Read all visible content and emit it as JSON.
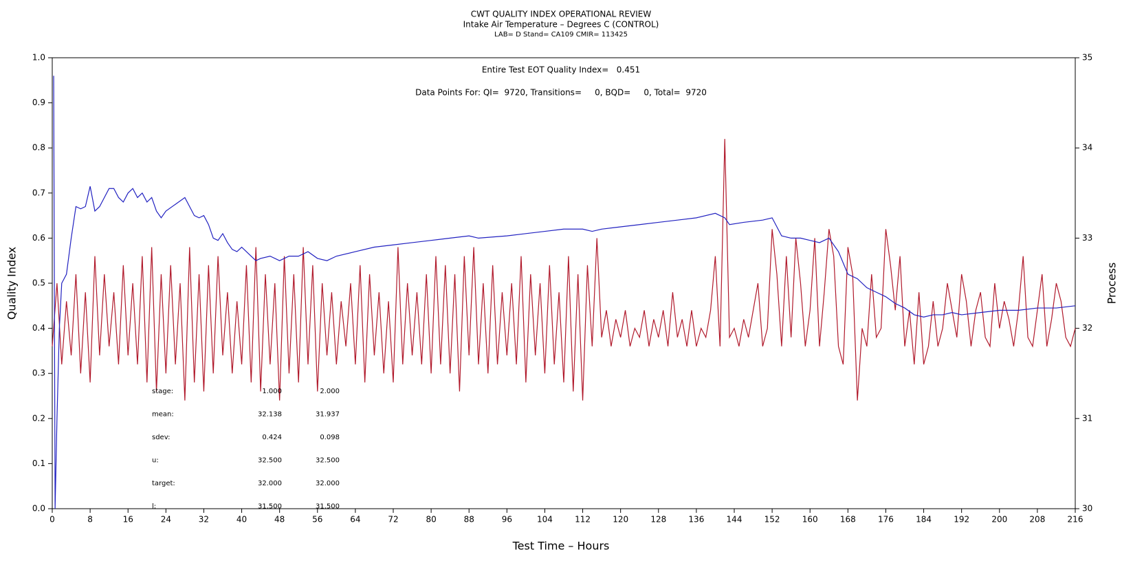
{
  "chart_data": {
    "type": "line",
    "title": "CWT QUALITY INDEX OPERATIONAL REVIEW",
    "subtitle": "Intake Air Temperature – Degrees C (CONTROL)",
    "subtitle2": "LAB= D Stand= CA109 CMIR= 113425",
    "annotations": [
      "Entire Test EOT Quality Index=   0.451",
      "Data Points For: QI=  9720, Transitions=     0, BQD=     0, Total=  9720"
    ],
    "stats_table": [
      [
        "stage:",
        "1.000",
        "2.000"
      ],
      [
        "mean:",
        "32.138",
        "31.937"
      ],
      [
        "sdev:",
        "0.424",
        "0.098"
      ],
      [
        "u:",
        "32.500",
        "32.500"
      ],
      [
        "target:",
        "32.000",
        "32.000"
      ],
      [
        "l:",
        "31.500",
        "31.500"
      ]
    ],
    "x_label": "Test Time – Hours",
    "y_label": "Quality Index",
    "y2_label": "Process",
    "xlim": [
      0,
      216
    ],
    "xticks": [
      0,
      8,
      16,
      24,
      32,
      40,
      48,
      56,
      64,
      72,
      80,
      88,
      96,
      104,
      112,
      120,
      128,
      136,
      144,
      152,
      160,
      168,
      176,
      184,
      192,
      200,
      208,
      216
    ],
    "ylim": [
      0,
      1
    ],
    "yticks": [
      {
        "value": 0,
        "label": "0.0"
      },
      {
        "value": 0.1,
        "label": "0.1"
      },
      {
        "value": 0.2,
        "label": "0.2"
      },
      {
        "value": 0.3,
        "label": "0.3"
      },
      {
        "value": 0.4,
        "label": "0.4"
      },
      {
        "value": 0.5,
        "label": "0.5"
      },
      {
        "value": 0.6,
        "label": "0.6"
      },
      {
        "value": 0.7,
        "label": "0.7"
      },
      {
        "value": 0.8,
        "label": "0.8"
      },
      {
        "value": 0.9,
        "label": "0.9"
      },
      {
        "value": 1,
        "label": "1.0"
      }
    ],
    "y2lim": [
      30,
      35
    ],
    "y2ticks": [
      30,
      31,
      32,
      33,
      34,
      35
    ],
    "series": [
      {
        "color": "#b0182a",
        "axis": "y2",
        "x": [
          0,
          1,
          2,
          3,
          4,
          5,
          6,
          7,
          8,
          9,
          10,
          11,
          12,
          13,
          14,
          15,
          16,
          17,
          18,
          19,
          20,
          21,
          22,
          23,
          24,
          25,
          26,
          27,
          28,
          29,
          30,
          31,
          32,
          33,
          34,
          35,
          36,
          37,
          38,
          39,
          40,
          41,
          42,
          43,
          44,
          45,
          46,
          47,
          48,
          49,
          50,
          51,
          52,
          53,
          54,
          55,
          56,
          57,
          58,
          59,
          60,
          61,
          62,
          63,
          64,
          65,
          66,
          67,
          68,
          69,
          70,
          71,
          72,
          73,
          74,
          75,
          76,
          77,
          78,
          79,
          80,
          81,
          82,
          83,
          84,
          85,
          86,
          87,
          88,
          89,
          90,
          91,
          92,
          93,
          94,
          95,
          96,
          97,
          98,
          99,
          100,
          101,
          102,
          103,
          104,
          105,
          106,
          107,
          108,
          109,
          110,
          111,
          112,
          113,
          114,
          115,
          116,
          117,
          118,
          119,
          120,
          121,
          122,
          123,
          124,
          125,
          126,
          127,
          128,
          129,
          130,
          131,
          132,
          133,
          134,
          135,
          136,
          137,
          138,
          139,
          140,
          141,
          142,
          143,
          144,
          145,
          146,
          147,
          148,
          149,
          150,
          151,
          152,
          153,
          154,
          155,
          156,
          157,
          158,
          159,
          160,
          161,
          162,
          163,
          164,
          165,
          166,
          167,
          168,
          169,
          170,
          171,
          172,
          173,
          174,
          175,
          176,
          177,
          178,
          179,
          180,
          181,
          182,
          183,
          184,
          185,
          186,
          187,
          188,
          189,
          190,
          191,
          192,
          193,
          194,
          195,
          196,
          197,
          198,
          199,
          200,
          201,
          202,
          203,
          204,
          205,
          206,
          207,
          208,
          209,
          210,
          211,
          212,
          213,
          214,
          215,
          216
        ],
        "values": [
          31.8,
          32.5,
          31.6,
          32.3,
          31.7,
          32.6,
          31.5,
          32.4,
          31.4,
          32.8,
          31.7,
          32.6,
          31.8,
          32.4,
          31.6,
          32.7,
          31.7,
          32.5,
          31.6,
          32.8,
          31.4,
          32.9,
          31.3,
          32.6,
          31.5,
          32.7,
          31.6,
          32.5,
          31.2,
          32.9,
          31.4,
          32.6,
          31.3,
          32.7,
          31.5,
          32.8,
          31.7,
          32.4,
          31.5,
          32.3,
          31.6,
          32.7,
          31.4,
          32.9,
          31.3,
          32.6,
          31.6,
          32.5,
          31.2,
          32.8,
          31.5,
          32.6,
          31.4,
          32.9,
          31.6,
          32.7,
          31.3,
          32.5,
          31.7,
          32.4,
          31.6,
          32.3,
          31.8,
          32.5,
          31.6,
          32.7,
          31.4,
          32.6,
          31.7,
          32.4,
          31.5,
          32.3,
          31.4,
          32.9,
          31.6,
          32.5,
          31.7,
          32.4,
          31.6,
          32.6,
          31.5,
          32.8,
          31.6,
          32.7,
          31.5,
          32.6,
          31.3,
          32.8,
          31.7,
          32.9,
          31.6,
          32.5,
          31.5,
          32.7,
          31.6,
          32.4,
          31.7,
          32.5,
          31.6,
          32.8,
          31.4,
          32.6,
          31.7,
          32.5,
          31.5,
          32.7,
          31.6,
          32.4,
          31.4,
          32.8,
          31.3,
          32.6,
          31.2,
          32.7,
          31.8,
          33.0,
          31.9,
          32.2,
          31.8,
          32.1,
          31.9,
          32.2,
          31.8,
          32.0,
          31.9,
          32.2,
          31.8,
          32.1,
          31.9,
          32.2,
          31.8,
          32.4,
          31.9,
          32.1,
          31.8,
          32.2,
          31.8,
          32.0,
          31.9,
          32.2,
          32.8,
          31.8,
          34.1,
          31.9,
          32.0,
          31.8,
          32.1,
          31.9,
          32.2,
          32.5,
          31.8,
          32.0,
          33.1,
          32.6,
          31.8,
          32.8,
          31.9,
          33.0,
          32.5,
          31.8,
          32.2,
          33.0,
          31.8,
          32.4,
          33.1,
          32.8,
          31.8,
          31.6,
          32.9,
          32.6,
          31.2,
          32.0,
          31.8,
          32.6,
          31.9,
          32.0,
          33.1,
          32.7,
          32.2,
          32.8,
          31.8,
          32.2,
          31.6,
          32.4,
          31.6,
          31.8,
          32.3,
          31.8,
          32.0,
          32.5,
          32.2,
          31.9,
          32.6,
          32.3,
          31.8,
          32.2,
          32.4,
          31.9,
          31.8,
          32.5,
          32.0,
          32.3,
          32.1,
          31.8,
          32.2,
          32.8,
          31.9,
          31.8,
          32.2,
          32.6,
          31.8,
          32.1,
          32.5,
          32.3,
          31.9,
          31.8,
          32.0
        ]
      },
      {
        "color": "#2020c0",
        "axis": "y",
        "x": [
          0.3,
          0.6,
          1,
          1.5,
          2,
          3,
          4,
          5,
          6,
          7,
          8,
          9,
          10,
          11,
          12,
          13,
          14,
          15,
          16,
          17,
          18,
          19,
          20,
          21,
          22,
          23,
          24,
          26,
          28,
          29,
          30,
          31,
          32,
          33,
          34,
          35,
          36,
          37,
          38,
          39,
          40,
          42,
          43,
          44,
          46,
          48,
          50,
          52,
          54,
          56,
          58,
          60,
          64,
          68,
          72,
          76,
          80,
          84,
          88,
          90,
          96,
          100,
          104,
          108,
          112,
          114,
          116,
          120,
          124,
          128,
          132,
          136,
          140,
          142,
          143,
          146,
          150,
          152,
          154,
          156,
          158,
          160,
          162,
          164,
          166,
          168,
          170,
          172,
          174,
          176,
          178,
          180,
          182,
          184,
          186,
          188,
          190,
          192,
          196,
          200,
          204,
          208,
          212,
          216
        ],
        "values": [
          0.96,
          0,
          0.2,
          0.4,
          0.5,
          0.52,
          0.6,
          0.67,
          0.665,
          0.67,
          0.715,
          0.66,
          0.67,
          0.69,
          0.71,
          0.71,
          0.69,
          0.68,
          0.7,
          0.71,
          0.69,
          0.7,
          0.68,
          0.69,
          0.66,
          0.645,
          0.66,
          0.675,
          0.69,
          0.67,
          0.65,
          0.645,
          0.65,
          0.63,
          0.6,
          0.595,
          0.61,
          0.59,
          0.575,
          0.57,
          0.58,
          0.56,
          0.55,
          0.555,
          0.56,
          0.55,
          0.56,
          0.56,
          0.57,
          0.555,
          0.55,
          0.56,
          0.57,
          0.58,
          0.585,
          0.59,
          0.595,
          0.6,
          0.605,
          0.6,
          0.605,
          0.61,
          0.615,
          0.62,
          0.62,
          0.615,
          0.62,
          0.625,
          0.63,
          0.635,
          0.64,
          0.645,
          0.655,
          0.645,
          0.63,
          0.635,
          0.64,
          0.645,
          0.605,
          0.6,
          0.6,
          0.595,
          0.59,
          0.6,
          0.57,
          0.52,
          0.51,
          0.49,
          0.48,
          0.47,
          0.455,
          0.445,
          0.43,
          0.425,
          0.43,
          0.43,
          0.435,
          0.43,
          0.435,
          0.44,
          0.44,
          0.445,
          0.445,
          0.45
        ]
      }
    ]
  }
}
